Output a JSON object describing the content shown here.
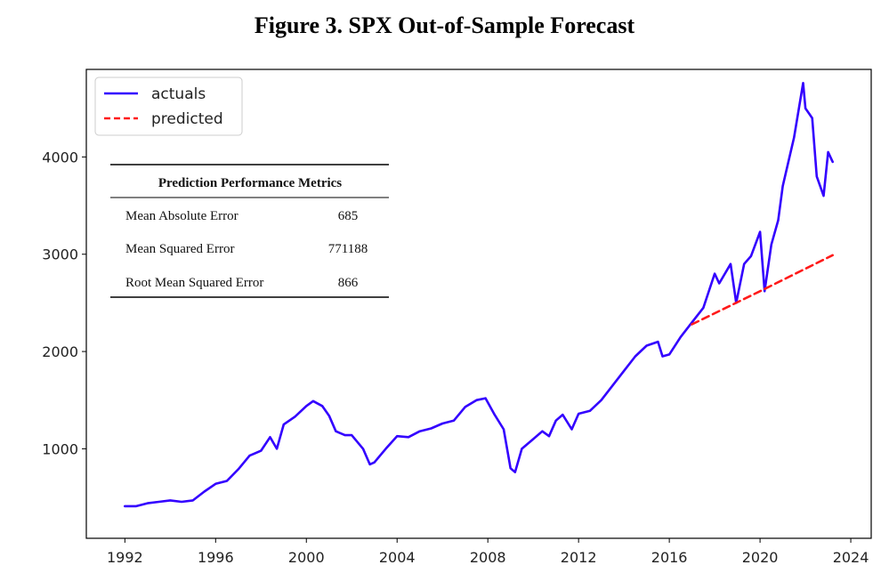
{
  "figure_title": "Figure 3. SPX Out-of-Sample Forecast",
  "colors": {
    "actuals": "#3300ff",
    "predicted": "#ff1a1a"
  },
  "chart_data": {
    "type": "line",
    "title": "Figure 3. SPX Out-of-Sample Forecast",
    "xlabel": "",
    "ylabel": "",
    "xlim": [
      1990.3,
      2024.9
    ],
    "ylim": [
      80,
      4900
    ],
    "x_ticks": [
      1992,
      1996,
      2000,
      2004,
      2008,
      2012,
      2016,
      2020,
      2024
    ],
    "y_ticks": [
      1000,
      2000,
      3000,
      4000
    ],
    "legend": {
      "placement": "top-left",
      "entries": [
        "actuals",
        "predicted"
      ]
    },
    "series": [
      {
        "name": "actuals",
        "style": "solid",
        "x": [
          1992.0,
          1992.5,
          1993.0,
          1993.5,
          1994.0,
          1994.5,
          1995.0,
          1995.5,
          1996.0,
          1996.5,
          1997.0,
          1997.5,
          1998.0,
          1998.4,
          1998.7,
          1999.0,
          1999.5,
          2000.0,
          2000.3,
          2000.7,
          2001.0,
          2001.3,
          2001.7,
          2002.0,
          2002.5,
          2002.8,
          2003.0,
          2003.5,
          2004.0,
          2004.5,
          2005.0,
          2005.5,
          2006.0,
          2006.5,
          2007.0,
          2007.5,
          2007.9,
          2008.3,
          2008.7,
          2009.0,
          2009.2,
          2009.5,
          2010.0,
          2010.4,
          2010.7,
          2011.0,
          2011.3,
          2011.7,
          2012.0,
          2012.5,
          2013.0,
          2013.5,
          2014.0,
          2014.5,
          2015.0,
          2015.5,
          2015.7,
          2016.0,
          2016.5,
          2017.0,
          2017.5,
          2018.0,
          2018.2,
          2018.7,
          2018.95,
          2019.3,
          2019.6,
          2020.0,
          2020.2,
          2020.5,
          2020.8,
          2021.0,
          2021.5,
          2021.9,
          2022.0,
          2022.3,
          2022.5,
          2022.8,
          2023.0,
          2023.2
        ],
        "values": [
          410,
          410,
          440,
          455,
          470,
          455,
          470,
          560,
          640,
          670,
          790,
          930,
          980,
          1120,
          1000,
          1250,
          1330,
          1440,
          1490,
          1440,
          1340,
          1180,
          1140,
          1140,
          1000,
          840,
          860,
          1000,
          1130,
          1120,
          1180,
          1210,
          1260,
          1290,
          1430,
          1500,
          1520,
          1350,
          1200,
          800,
          760,
          1000,
          1100,
          1180,
          1130,
          1290,
          1350,
          1200,
          1360,
          1390,
          1500,
          1650,
          1800,
          1950,
          2060,
          2100,
          1950,
          1970,
          2150,
          2300,
          2450,
          2800,
          2700,
          2900,
          2500,
          2900,
          2980,
          3230,
          2620,
          3100,
          3350,
          3700,
          4200,
          4760,
          4500,
          4400,
          3800,
          3600,
          4050,
          3950
        ]
      },
      {
        "name": "predicted",
        "style": "dashed",
        "x": [
          2017.0,
          2020.0,
          2023.2
        ],
        "values": [
          2280,
          2620,
          2990
        ]
      }
    ]
  },
  "metrics_table": {
    "header": "Prediction Performance Metrics",
    "rows": [
      {
        "label": "Mean Absolute Error",
        "value": "685"
      },
      {
        "label": "Mean Squared Error",
        "value": "771188"
      },
      {
        "label": "Root Mean Squared Error",
        "value": "866"
      }
    ]
  }
}
